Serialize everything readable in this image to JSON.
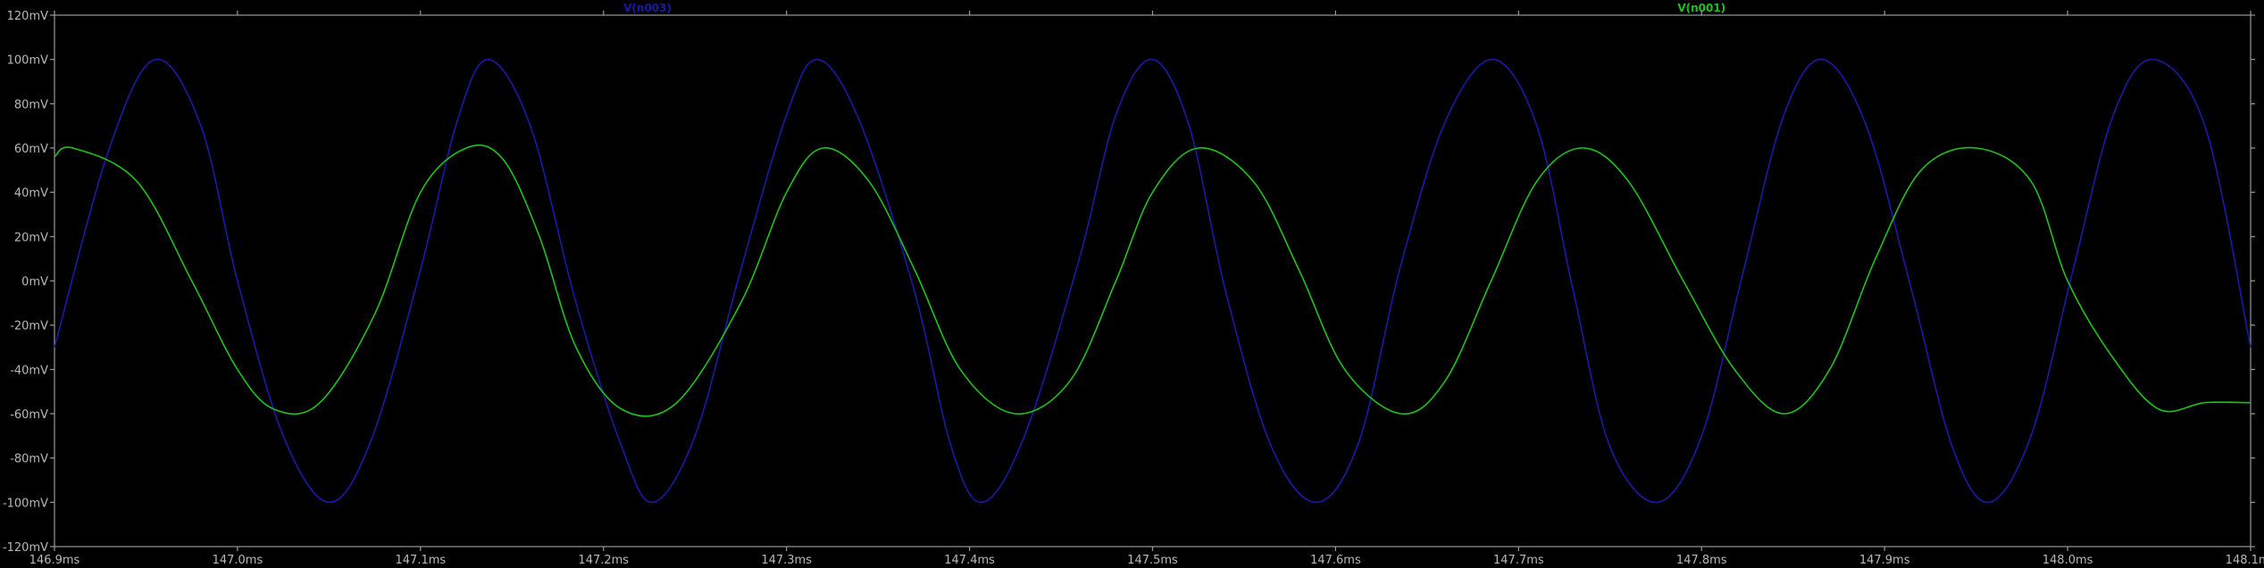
{
  "chart_data": {
    "type": "line",
    "title": "",
    "xlabel": "",
    "ylabel": "",
    "xlim": [
      146.9,
      148.1
    ],
    "ylim": [
      -120,
      120
    ],
    "x_ticks": [
      {
        "value": 146.9,
        "label": "146.9ms"
      },
      {
        "value": 147.0,
        "label": "147.0ms"
      },
      {
        "value": 147.1,
        "label": "147.1ms"
      },
      {
        "value": 147.2,
        "label": "147.2ms"
      },
      {
        "value": 147.3,
        "label": "147.3ms"
      },
      {
        "value": 147.4,
        "label": "147.4ms"
      },
      {
        "value": 147.5,
        "label": "147.5ms"
      },
      {
        "value": 147.6,
        "label": "147.6ms"
      },
      {
        "value": 147.7,
        "label": "147.7ms"
      },
      {
        "value": 147.8,
        "label": "147.8ms"
      },
      {
        "value": 147.9,
        "label": "147.9ms"
      },
      {
        "value": 148.0,
        "label": "148.0ms"
      },
      {
        "value": 148.1,
        "label": "148.1ms"
      }
    ],
    "y_ticks": [
      {
        "value": 120,
        "label": "120mV"
      },
      {
        "value": 100,
        "label": "100mV"
      },
      {
        "value": 80,
        "label": "80mV"
      },
      {
        "value": 60,
        "label": "60mV"
      },
      {
        "value": 40,
        "label": "40mV"
      },
      {
        "value": 20,
        "label": "20mV"
      },
      {
        "value": 0,
        "label": "0mV"
      },
      {
        "value": -20,
        "label": "-20mV"
      },
      {
        "value": -40,
        "label": "-40mV"
      },
      {
        "value": -60,
        "label": "-60mV"
      },
      {
        "value": -80,
        "label": "-80mV"
      },
      {
        "value": -100,
        "label": "-100mV"
      },
      {
        "value": -120,
        "label": "-120mV"
      }
    ],
    "grid": false,
    "colors": {
      "background": "#000000",
      "axes": "#9a9a9a",
      "tick_label": "#b8b8b8"
    },
    "series": [
      {
        "name": "V(n003)",
        "color": "#1a1aa8",
        "x": [
          146.9,
          146.93,
          146.955,
          146.98,
          147.0,
          147.025,
          147.05,
          147.073,
          147.1,
          147.12,
          147.137,
          147.16,
          147.185,
          147.21,
          147.227,
          147.25,
          147.275,
          147.3,
          147.317,
          147.34,
          147.37,
          147.39,
          147.407,
          147.43,
          147.46,
          147.48,
          147.5,
          147.52,
          147.54,
          147.565,
          147.59,
          147.613,
          147.635,
          147.66,
          147.686,
          147.71,
          147.73,
          147.75,
          147.776,
          147.8,
          147.823,
          147.845,
          147.866,
          147.89,
          147.915,
          147.937,
          147.957,
          147.98,
          148.003,
          148.025,
          148.047,
          148.075,
          148.1
        ],
        "y": [
          -30,
          60,
          100,
          70,
          0,
          -70,
          -100,
          -72,
          5,
          72,
          100,
          70,
          -10,
          -75,
          -100,
          -70,
          5,
          75,
          100,
          72,
          -5,
          -75,
          -100,
          -70,
          10,
          75,
          100,
          70,
          -5,
          -75,
          -100,
          -72,
          5,
          72,
          100,
          70,
          -5,
          -75,
          -100,
          -70,
          5,
          75,
          100,
          70,
          -5,
          -75,
          -100,
          -70,
          5,
          75,
          100,
          70,
          -30
        ]
      },
      {
        "name": "V(n001)",
        "color": "#1ec21e",
        "x": [
          146.9,
          146.91,
          146.945,
          146.975,
          147.0,
          147.02,
          147.045,
          147.075,
          147.1,
          147.125,
          147.145,
          147.165,
          147.185,
          147.21,
          147.24,
          147.275,
          147.3,
          147.32,
          147.345,
          147.37,
          147.395,
          147.425,
          147.455,
          147.48,
          147.5,
          147.525,
          147.555,
          147.58,
          147.605,
          147.636,
          147.66,
          147.685,
          147.71,
          147.735,
          147.76,
          147.79,
          147.818,
          147.845,
          147.87,
          147.895,
          147.92,
          147.95,
          147.98,
          148.0,
          148.025,
          148.05,
          148.075,
          148.1
        ],
        "y": [
          56,
          60,
          45,
          0,
          -40,
          -58,
          -55,
          -15,
          40,
          60,
          55,
          20,
          -30,
          -58,
          -55,
          -10,
          40,
          60,
          45,
          5,
          -40,
          -60,
          -45,
          0,
          40,
          60,
          45,
          5,
          -40,
          -60,
          -45,
          0,
          45,
          60,
          45,
          0,
          -40,
          -60,
          -40,
          10,
          50,
          60,
          45,
          0,
          -35,
          -58,
          -55,
          -55
        ]
      }
    ]
  }
}
